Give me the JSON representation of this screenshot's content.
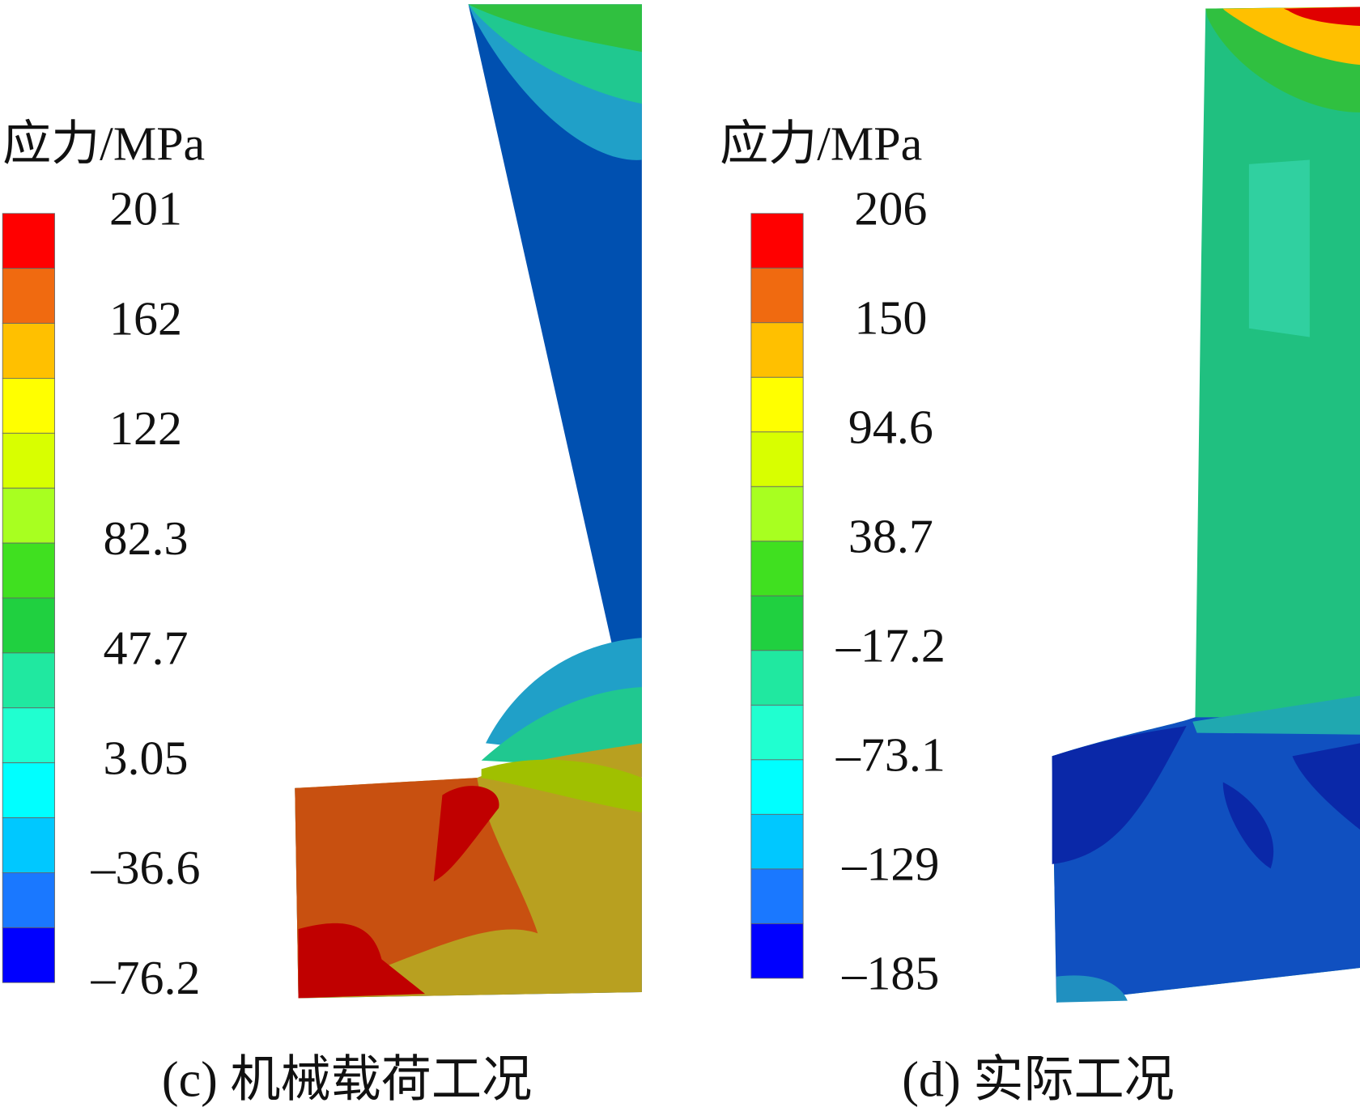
{
  "panels": [
    {
      "legend_title": "应力/MPa",
      "legend_ticks": [
        "201",
        "162",
        "122",
        "82.3",
        "47.7",
        "3.05",
        "–36.6",
        "–76.2"
      ],
      "caption": "(c) 机械载荷工况"
    },
    {
      "legend_title": "应力/MPa",
      "legend_ticks": [
        "206",
        "150",
        "94.6",
        "38.7",
        "–17.2",
        "–73.1",
        "–129",
        "–185"
      ],
      "caption": "(d) 实际工况"
    }
  ]
}
